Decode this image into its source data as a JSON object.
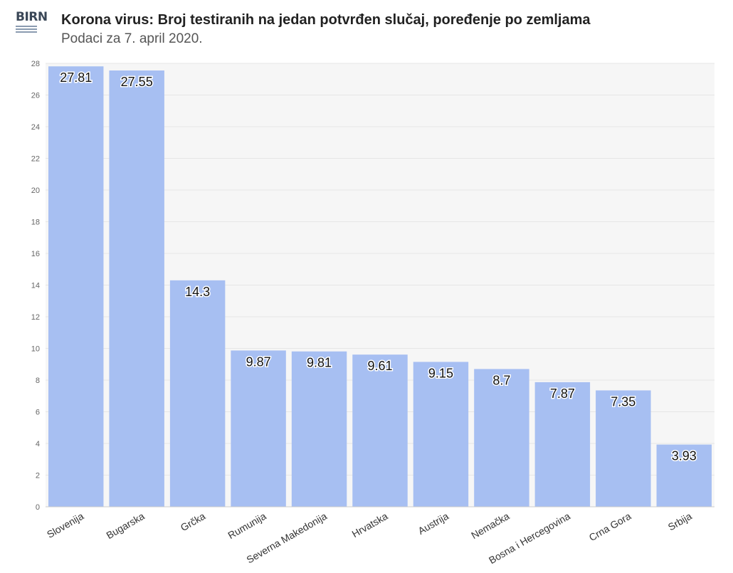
{
  "header": {
    "logo_text": "BIRN",
    "title": "Korona virus: Broj testiranih na jedan potvrđen slučaj, poređenje po zemljama",
    "subtitle": "Podaci za 7. april 2020."
  },
  "chart_data": {
    "type": "bar",
    "categories": [
      "Slovenija",
      "Bugarska",
      "Grčka",
      "Rumunija",
      "Severna Makedonija",
      "Hrvatska",
      "Austrija",
      "Nemačka",
      "Bosna i Hercegovina",
      "Crna Gora",
      "Srbija"
    ],
    "values": [
      27.81,
      27.55,
      14.3,
      9.87,
      9.81,
      9.61,
      9.15,
      8.7,
      7.87,
      7.35,
      3.93
    ],
    "data_labels": [
      "27.81",
      "27.55",
      "14.3",
      "9.87",
      "9.81",
      "9.61",
      "9.15",
      "8.7",
      "7.87",
      "7.35",
      "3.93"
    ],
    "yticks": [
      "0",
      "2",
      "4",
      "6",
      "8",
      "10",
      "12",
      "14",
      "16",
      "18",
      "20",
      "22",
      "24",
      "26",
      "28"
    ],
    "ylim": [
      0,
      28
    ],
    "grid": true,
    "bar_color": "#a7bff2",
    "plot_background": "#f6f6f6"
  }
}
